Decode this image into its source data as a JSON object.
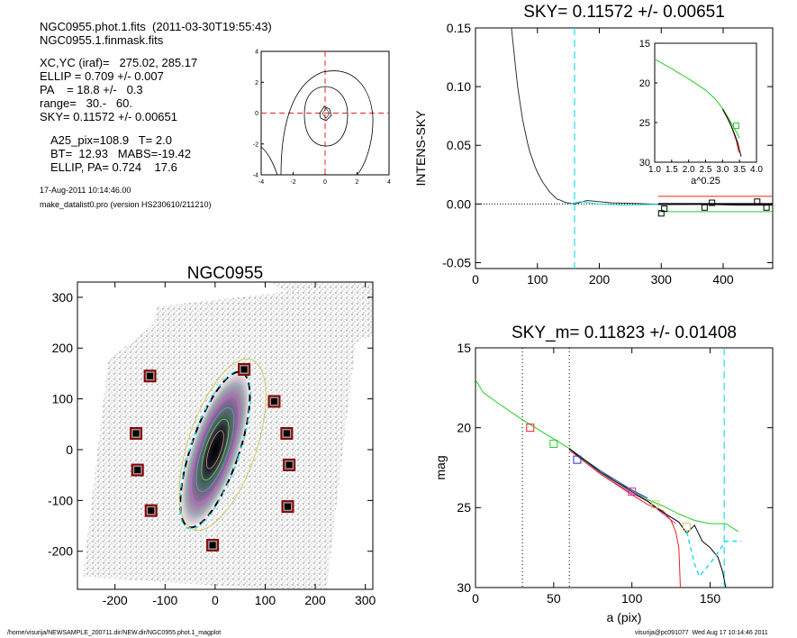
{
  "header": {
    "file_line": "NGC0955.phot.1.fits  (2011-03-30T19:55:43)",
    "mask_line": "NGC0955.1.finmask.fits",
    "center_line": "XC,YC (iraf)=   275.02, 285.17",
    "ellip_line": "ELLIP = 0.709 +/- 0.007",
    "pa_line": "PA    = 18.8 +/-   0.3",
    "range_line": "range=   30.-   60.",
    "sky_line": "SKY= 0.11572 +/- 0.00651",
    "a25_line": "A25_pix=108.9   T= 2.0",
    "bt_line": "BT=  12.93   MABS=-19.42",
    "ellip_pa_line": "ELLIP, PA= 0.724    17.6",
    "date_line": "17-Aug-2011 10:14:46.00",
    "program_line": "make_datalist0.pro (version HS230610/211210)"
  },
  "footer": {
    "path": "/home/visurija/NEWSAMPLE_200711.dir/NEW.dir/NGC0955.phot.1_magplot",
    "user_stamp": "visurija@pc091077  Wed Aug 17 10:14:46 2011"
  },
  "colors": {
    "black": "#000000",
    "red": "#e8241f",
    "green": "#22cc22",
    "cyan": "#22ddee",
    "blue": "#2233cc",
    "magenta": "#cc3399",
    "gray": "#888888",
    "olive": "#cccc66",
    "darkred": "#8b0000"
  },
  "chart_data": [
    {
      "id": "contour",
      "type": "contour",
      "title": "",
      "xlim": [
        -4,
        4
      ],
      "ylim": [
        -4,
        4
      ],
      "xticks": [
        "-4",
        "-2",
        "0",
        "2",
        "4"
      ],
      "yticks": [
        "-4",
        "-2",
        "0",
        "2",
        "4"
      ],
      "crosshair": [
        0,
        0
      ]
    },
    {
      "id": "sky",
      "type": "line",
      "title": "SKY= 0.11572 +/- 0.00651",
      "xlabel": "",
      "ylabel": "INTENS-SKY",
      "xlim": [
        0,
        480
      ],
      "ylim": [
        -0.055,
        0.15
      ],
      "xticks": [
        "0",
        "100",
        "200",
        "300",
        "400"
      ],
      "yticks": [
        "-0.05",
        "0.00",
        "0.05",
        "0.10",
        "0.15"
      ],
      "vline_cyan": 160,
      "profile": [
        [
          58,
          0.15
        ],
        [
          60,
          0.14
        ],
        [
          64,
          0.12
        ],
        [
          68,
          0.1
        ],
        [
          72,
          0.086
        ],
        [
          76,
          0.072
        ],
        [
          80,
          0.062
        ],
        [
          84,
          0.052
        ],
        [
          88,
          0.044
        ],
        [
          92,
          0.038
        ],
        [
          96,
          0.032
        ],
        [
          100,
          0.027
        ],
        [
          104,
          0.023
        ],
        [
          108,
          0.019
        ],
        [
          112,
          0.016
        ],
        [
          116,
          0.013
        ],
        [
          120,
          0.01
        ],
        [
          124,
          0.008
        ],
        [
          128,
          0.006
        ],
        [
          132,
          0.004
        ],
        [
          136,
          0.0035
        ],
        [
          140,
          0.0025
        ],
        [
          144,
          0.0015
        ],
        [
          148,
          0.001
        ],
        [
          152,
          0.0008
        ],
        [
          156,
          0.0005
        ],
        [
          160,
          0.0
        ]
      ],
      "tail": [
        [
          160,
          0.0
        ],
        [
          180,
          0.003
        ],
        [
          220,
          0.001
        ],
        [
          260,
          0.0005
        ],
        [
          300,
          -0.0005
        ],
        [
          360,
          0.0
        ],
        [
          420,
          -0.001
        ],
        [
          480,
          -0.001
        ]
      ],
      "tail_cyan": [
        [
          150,
          0.0
        ],
        [
          170,
          0.002
        ],
        [
          200,
          0.0
        ],
        [
          240,
          -0.001
        ],
        [
          280,
          -0.0005
        ],
        [
          310,
          0.0
        ]
      ],
      "squares": [
        [
          300,
          -0.008
        ],
        [
          305,
          -0.004
        ],
        [
          370,
          -0.003
        ],
        [
          382,
          0.001
        ],
        [
          455,
          0.002
        ],
        [
          470,
          -0.003
        ]
      ],
      "red_level": 0.0065,
      "green_level": -0.0065,
      "sky_segment": [
        295,
        480
      ],
      "inset": {
        "xlabel": "a^0.25",
        "xlim": [
          1.0,
          4.0
        ],
        "ylim": [
          30,
          15
        ],
        "xticks": [
          "1.0",
          "1.5",
          "2.0",
          "2.5",
          "3.0",
          "3.5",
          "4.0"
        ],
        "yticks": [
          "15",
          "20",
          "25",
          "30"
        ],
        "green": [
          [
            1.0,
            17.0
          ],
          [
            1.5,
            18.2
          ],
          [
            2.0,
            19.5
          ],
          [
            2.5,
            20.9
          ],
          [
            2.8,
            22.1
          ],
          [
            3.0,
            23.2
          ],
          [
            3.2,
            24.6
          ],
          [
            3.35,
            25.8
          ],
          [
            3.45,
            26.5
          ],
          [
            3.5,
            27.0
          ]
        ],
        "black": [
          [
            3.0,
            23.3
          ],
          [
            3.2,
            24.9
          ],
          [
            3.35,
            26.4
          ],
          [
            3.45,
            27.6
          ],
          [
            3.5,
            28.5
          ],
          [
            3.55,
            29.3
          ]
        ],
        "red": [
          [
            3.05,
            23.6
          ],
          [
            3.25,
            25.4
          ],
          [
            3.4,
            27.2
          ],
          [
            3.48,
            28.8
          ]
        ]
      }
    },
    {
      "id": "image",
      "type": "image",
      "title": "NGC0955",
      "xlim": [
        -275,
        315
      ],
      "ylim": [
        -275,
        330
      ],
      "xticks": [
        "-200",
        "-100",
        "0",
        "100",
        "200",
        "300"
      ],
      "yticks": [
        "-200",
        "-100",
        "0",
        "100",
        "200",
        "300"
      ],
      "stars": [
        [
          -130,
          145
        ],
        [
          58,
          158
        ],
        [
          118,
          95
        ],
        [
          -158,
          32
        ],
        [
          143,
          32
        ],
        [
          -155,
          -40
        ],
        [
          148,
          -30
        ],
        [
          -128,
          -120
        ],
        [
          145,
          -112
        ],
        [
          -5,
          -188
        ]
      ],
      "ellipse": {
        "cx": 0,
        "cy": 0,
        "a": 160,
        "b": 47,
        "pa": 18.8
      }
    },
    {
      "id": "mag",
      "type": "line",
      "title": "SKY_m=  0.11823 +/- 0.01408",
      "xlabel": "a (pix)",
      "ylabel": "mag",
      "xlim": [
        0,
        190
      ],
      "ylim": [
        30,
        15
      ],
      "xticks": [
        "0",
        "50",
        "100",
        "150"
      ],
      "yticks": [
        "15",
        "20",
        "25",
        "30"
      ],
      "vlines_dotted": [
        30,
        60
      ],
      "vline_cyan": 159,
      "green": [
        [
          0,
          17.0
        ],
        [
          5,
          17.8
        ],
        [
          15,
          18.5
        ],
        [
          30,
          19.5
        ],
        [
          45,
          20.4
        ],
        [
          60,
          21.3
        ],
        [
          70,
          22.0
        ],
        [
          80,
          22.7
        ],
        [
          90,
          23.4
        ],
        [
          100,
          23.9
        ],
        [
          110,
          24.5
        ],
        [
          120,
          24.9
        ],
        [
          130,
          25.4
        ],
        [
          140,
          25.8
        ],
        [
          150,
          26.0
        ],
        [
          160,
          26.0
        ],
        [
          168,
          26.5
        ]
      ],
      "black": [
        [
          60,
          21.3
        ],
        [
          80,
          22.8
        ],
        [
          100,
          24.0
        ],
        [
          110,
          24.6
        ],
        [
          120,
          25.3
        ],
        [
          130,
          25.9
        ],
        [
          135,
          26.6
        ],
        [
          140,
          26.1
        ],
        [
          145,
          27.1
        ],
        [
          150,
          27.5
        ],
        [
          155,
          28.1
        ],
        [
          158,
          29.0
        ],
        [
          160,
          30.0
        ]
      ],
      "red": [
        [
          60,
          21.4
        ],
        [
          80,
          22.9
        ],
        [
          100,
          24.2
        ],
        [
          110,
          24.8
        ],
        [
          120,
          25.2
        ],
        [
          125,
          25.8
        ],
        [
          128,
          26.5
        ],
        [
          130,
          27.5
        ],
        [
          131,
          30.0
        ]
      ],
      "magenta": [
        [
          60,
          21.4
        ],
        [
          80,
          22.9
        ],
        [
          100,
          24.1
        ],
        [
          110,
          24.6
        ],
        [
          120,
          25.4
        ],
        [
          128,
          26.0
        ]
      ],
      "blue": [
        [
          60,
          21.4
        ],
        [
          80,
          22.7
        ],
        [
          100,
          23.9
        ],
        [
          110,
          24.4
        ]
      ],
      "cyan_dashed": [
        [
          135,
          26.5
        ],
        [
          140,
          28.5
        ],
        [
          143,
          29.3
        ],
        [
          150,
          28.5
        ],
        [
          160,
          27.1
        ],
        [
          170,
          27.1
        ]
      ],
      "squares": [
        [
          35,
          20.0
        ],
        [
          50,
          21.0
        ],
        [
          65,
          22.0
        ],
        [
          100,
          24.0
        ],
        [
          115,
          24.8
        ],
        [
          135,
          26.2
        ]
      ],
      "square_colors": [
        "red",
        "green",
        "blue",
        "magenta",
        "olive",
        "olive"
      ]
    }
  ]
}
